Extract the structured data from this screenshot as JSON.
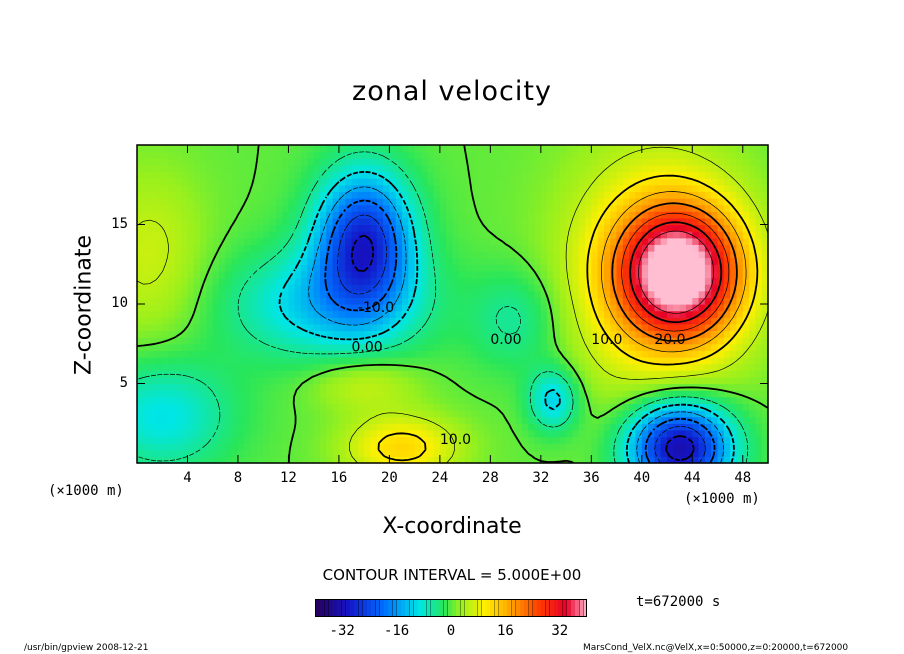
{
  "chart_data": {
    "type": "heatmap",
    "title": "zonal velocity",
    "xlabel": "X-coordinate",
    "ylabel": "Z-coordinate",
    "x_unit": "(×1000 m)",
    "xlim": [
      0,
      50
    ],
    "ylim": [
      0,
      20
    ],
    "x_ticks": [
      "4",
      "8",
      "12",
      "16",
      "20",
      "24",
      "28",
      "32",
      "36",
      "40",
      "44",
      "48"
    ],
    "y_ticks": [
      "5",
      "10",
      "15"
    ],
    "contour_interval_text": "CONTOUR INTERVAL = 5.000E+00",
    "contour_labels": [
      "-10.0",
      "0.00",
      "0.00",
      "10.0",
      "10.0",
      "20.0"
    ],
    "colorbar": {
      "range": [
        -40,
        40
      ],
      "ticks": [
        "-32",
        "-16",
        "0",
        "16",
        "32"
      ]
    },
    "time_label": "t=672000 s",
    "features": [
      {
        "x": 18,
        "z": 14,
        "value": -25
      },
      {
        "x": 43,
        "z": 11.5,
        "value": 32
      },
      {
        "x": 43,
        "z": 1.5,
        "value": -30
      },
      {
        "x": 21,
        "z": 1,
        "value": 12
      },
      {
        "x": 1,
        "z": 13,
        "value": 8
      },
      {
        "x": 2,
        "z": 3,
        "value": -12
      },
      {
        "x": 33,
        "z": 4,
        "value": -12
      }
    ]
  },
  "footer": {
    "left": "/usr/bin/gpview   2008-12-21",
    "right": "MarsCond_VelX.nc@VelX,x=0:50000,z=0:20000,t=672000"
  }
}
